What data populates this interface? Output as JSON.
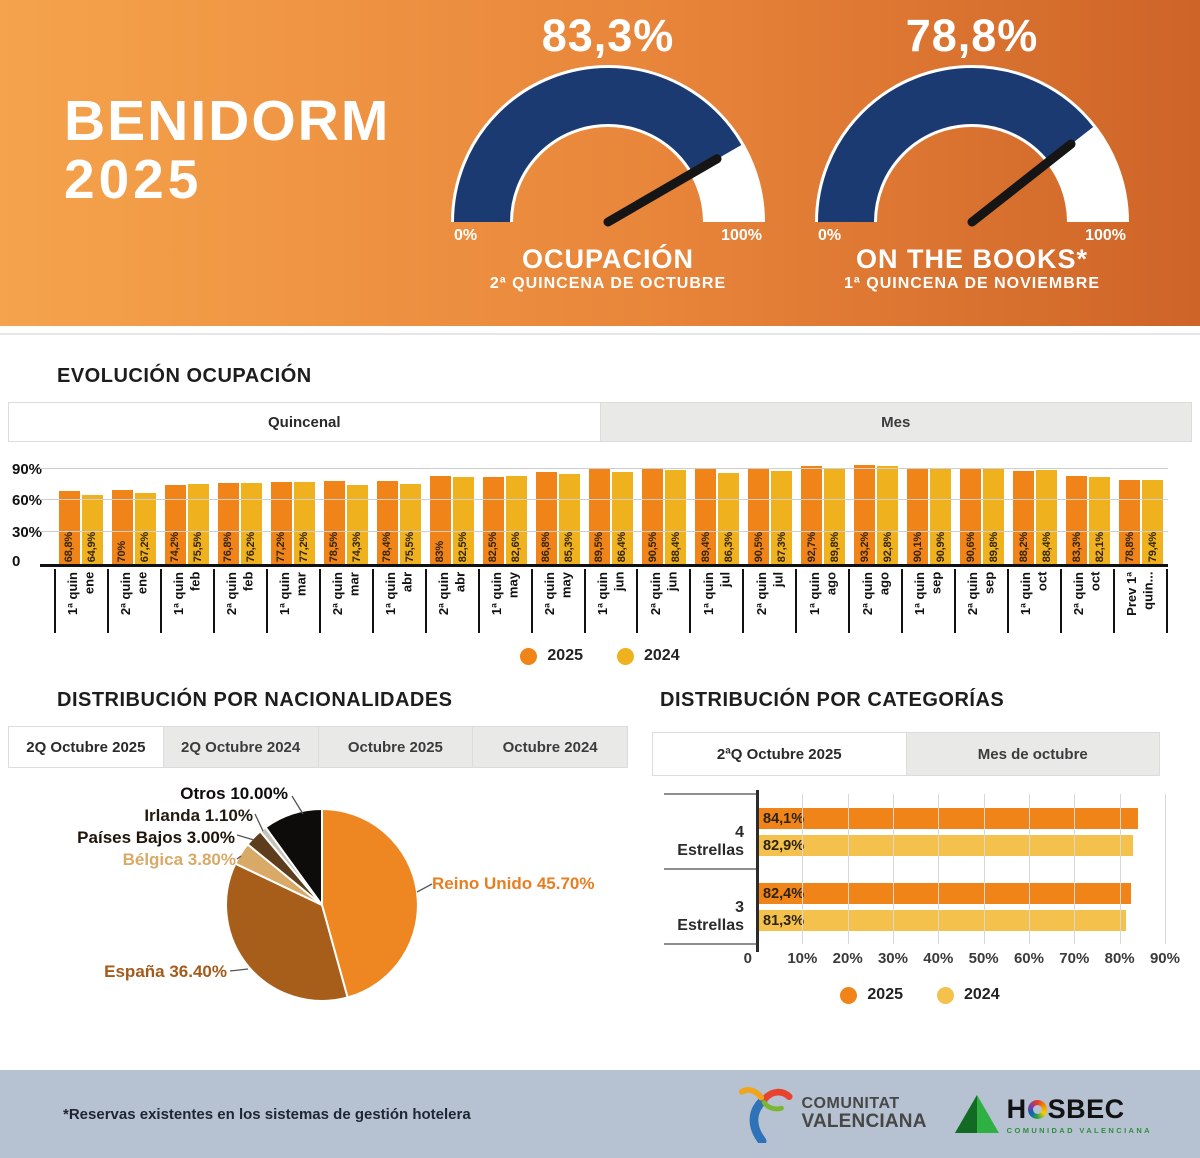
{
  "header": {
    "title_line1": "BENIDORM",
    "title_line2": "2025"
  },
  "evolution": {
    "title": "EVOLUCIÓN OCUPACIÓN",
    "tabs": [
      {
        "label": "Quincenal",
        "active": true
      },
      {
        "label": "Mes",
        "active": false
      }
    ],
    "legend": [
      {
        "label": "2025",
        "color": "#F08418"
      },
      {
        "label": "2024",
        "color": "#EFB11E"
      }
    ]
  },
  "nationalities": {
    "title": "DISTRIBUCIÓN POR NACIONALIDADES",
    "tabs": [
      {
        "label": "2Q Octubre 2025",
        "active": true
      },
      {
        "label": "2Q Octubre 2024",
        "active": false
      },
      {
        "label": "Octubre 2025",
        "active": false
      },
      {
        "label": "Octubre 2024",
        "active": false
      }
    ]
  },
  "categories": {
    "title": "DISTRIBUCIÓN POR CATEGORÍAS",
    "tabs": [
      {
        "label": "2ªQ Octubre 2025",
        "active": true
      },
      {
        "label": "Mes de octubre",
        "active": false
      }
    ],
    "legend": [
      {
        "label": "2025",
        "color": "#F08418"
      },
      {
        "label": "2024",
        "color": "#F3C14C"
      }
    ]
  },
  "footer": {
    "note": "*Reservas existentes en los sistemas de gestión hotelera",
    "logos": [
      {
        "name": "Comunitat Valenciana",
        "line1": "COMUNITAT",
        "line2": "VALENCIANA"
      },
      {
        "name": "HOSBEC",
        "text_left": "H",
        "text_right": "SBEC",
        "subtext": "COMUNIDAD VALENCIANA"
      }
    ]
  },
  "chart_data": [
    {
      "id": "gauge-ocupacion",
      "type": "gauge",
      "value": 83.3,
      "value_label": "83,3%",
      "min_label": "0%",
      "max_label": "100%",
      "title": "OCUPACIÓN",
      "subtitle": "2ª QUINCENA DE OCTUBRE",
      "fill_color": "#1C3A72",
      "track_color": "#FFFFFF"
    },
    {
      "id": "gauge-on-the-books",
      "type": "gauge",
      "value": 78.8,
      "value_label": "78,8%",
      "min_label": "0%",
      "max_label": "100%",
      "title": "ON THE BOOKS*",
      "subtitle": "1ª QUINCENA DE NOVIEMBRE",
      "fill_color": "#1C3A72",
      "track_color": "#FFFFFF"
    },
    {
      "id": "evolution-occupancy",
      "type": "bar",
      "grid": true,
      "legend_position": "bottom",
      "ylim": [
        0,
        100
      ],
      "yticks": [
        {
          "label": "90%",
          "value": 90
        },
        {
          "label": "60%",
          "value": 60
        },
        {
          "label": "30%",
          "value": 30
        },
        {
          "label": "0",
          "value": 0
        }
      ],
      "categories": [
        "1ª quin\nene",
        "2ª quin\nene",
        "1ª quin\nfeb",
        "2ª quin\nfeb",
        "1ª quin\nmar",
        "2ª quin\nmar",
        "1ª quin\nabr",
        "2ª quin\nabr",
        "1ª quin\nmay",
        "2ª quin\nmay",
        "1ª quin\njun",
        "2ª quin\njun",
        "1ª quin\njul",
        "2ª quin\njul",
        "1ª quin\nago",
        "2ª quin\nago",
        "1ª quin\nsep",
        "2ª quin\nsep",
        "1ª quin\noct",
        "2ª quin\noct",
        "Prev 1ª\nquin..."
      ],
      "series": [
        {
          "name": "2025",
          "color": "#F08418",
          "values": [
            68.8,
            70,
            74.2,
            76.8,
            77.2,
            78.5,
            78.4,
            83,
            82.5,
            86.8,
            89.5,
            90.5,
            89.4,
            90.5,
            92.7,
            93.2,
            90.1,
            90.6,
            88.2,
            83.3,
            78.8
          ],
          "labels": [
            "68,8%",
            "70%",
            "74,2%",
            "76,8%",
            "77,2%",
            "78,5%",
            "78,4%",
            "83%",
            "82,5%",
            "86,8%",
            "89,5%",
            "90,5%",
            "89,4%",
            "90,5%",
            "92,7%",
            "93,2%",
            "90,1%",
            "90,6%",
            "88,2%",
            "83,3%",
            "78,8%"
          ]
        },
        {
          "name": "2024",
          "color": "#EFB11E",
          "values": [
            64.9,
            67.2,
            75.5,
            76.2,
            77.2,
            74.3,
            75.5,
            82.5,
            82.6,
            85.3,
            86.4,
            88.4,
            86.3,
            87.3,
            89.8,
            92.8,
            90.9,
            89.8,
            88.4,
            82.1,
            79.4
          ],
          "labels": [
            "64,9%",
            "67,2%",
            "75,5%",
            "76,2%",
            "77,2%",
            "74,3%",
            "75,5%",
            "82,5%",
            "82,6%",
            "85,3%",
            "86,4%",
            "88,4%",
            "86,3%",
            "87,3%",
            "89,8%",
            "92,8%",
            "90,9%",
            "89,8%",
            "88,4%",
            "82,1%",
            "79,4%"
          ]
        }
      ]
    },
    {
      "id": "nationalities-pie",
      "type": "pie",
      "direction": "clockwise",
      "start_angle": 0,
      "slices": [
        {
          "name": "Reino Unido",
          "value": 45.7,
          "label": "Reino Unido 45.70%",
          "color": "#EE8722",
          "label_color": "#E87E22"
        },
        {
          "name": "España",
          "value": 36.4,
          "label": "España 36.40%",
          "color": "#A85E1B",
          "label_color": "#A35B1C"
        },
        {
          "name": "Bélgica",
          "value": 3.8,
          "label": "Bélgica 3.80%",
          "color": "#D9A967",
          "label_color": "#D9A967"
        },
        {
          "name": "Países Bajos",
          "value": 3.0,
          "label": "Países Bajos 3.00%",
          "color": "#5E3D1D",
          "label_color": "#20150A"
        },
        {
          "name": "Irlanda",
          "value": 1.1,
          "label": "Irlanda 1.10%",
          "color": "#C6C2BA",
          "label_color": "#241B10"
        },
        {
          "name": "Otros",
          "value": 10.0,
          "label": "Otros 10.00%",
          "color": "#0D0C0A",
          "label_color": "#0E0D0B"
        }
      ]
    },
    {
      "id": "categories-bars",
      "type": "bar",
      "orientation": "horizontal",
      "xlim": [
        0,
        90
      ],
      "categories": [
        "4 Estrellas",
        "3 Estrellas"
      ],
      "xticks": [
        "0",
        "10%",
        "20%",
        "30%",
        "40%",
        "50%",
        "60%",
        "70%",
        "80%",
        "90%"
      ],
      "series": [
        {
          "name": "2025",
          "color": "#F08418",
          "values": [
            84.1,
            82.4
          ],
          "labels": [
            "84,1%",
            "82,4%"
          ]
        },
        {
          "name": "2024",
          "color": "#F3C14C",
          "values": [
            82.9,
            81.3
          ],
          "labels": [
            "82,9%",
            "81,3%"
          ]
        }
      ]
    }
  ]
}
